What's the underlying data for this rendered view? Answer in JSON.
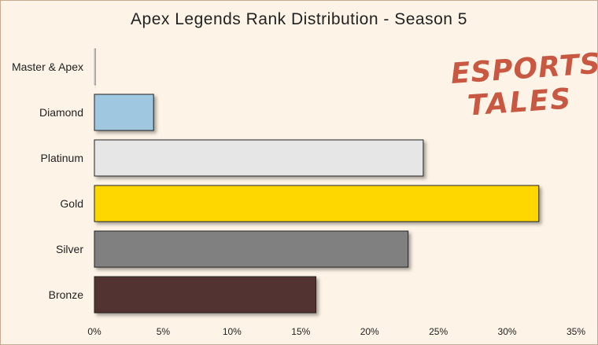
{
  "logo": {
    "line1": "ESPORTS",
    "line2": "TALES"
  },
  "chart_data": {
    "type": "bar",
    "orientation": "horizontal",
    "title": "Apex Legends Rank Distribution - Season 5",
    "xlabel": "",
    "ylabel": "",
    "categories": [
      "Master & Apex",
      "Diamond",
      "Platinum",
      "Gold",
      "Silver",
      "Bronze"
    ],
    "values": [
      0.1,
      4.3,
      23.9,
      32.3,
      22.8,
      16.1
    ],
    "colors": [
      "#d9d9d9",
      "#9fc7df",
      "#e6e6e6",
      "#ffd700",
      "#808080",
      "#523132"
    ],
    "xlim": [
      0,
      35
    ],
    "x_ticks": [
      0,
      5,
      10,
      15,
      20,
      25,
      30,
      35
    ],
    "tick_suffix": "%",
    "grid": false,
    "legend": "none"
  }
}
